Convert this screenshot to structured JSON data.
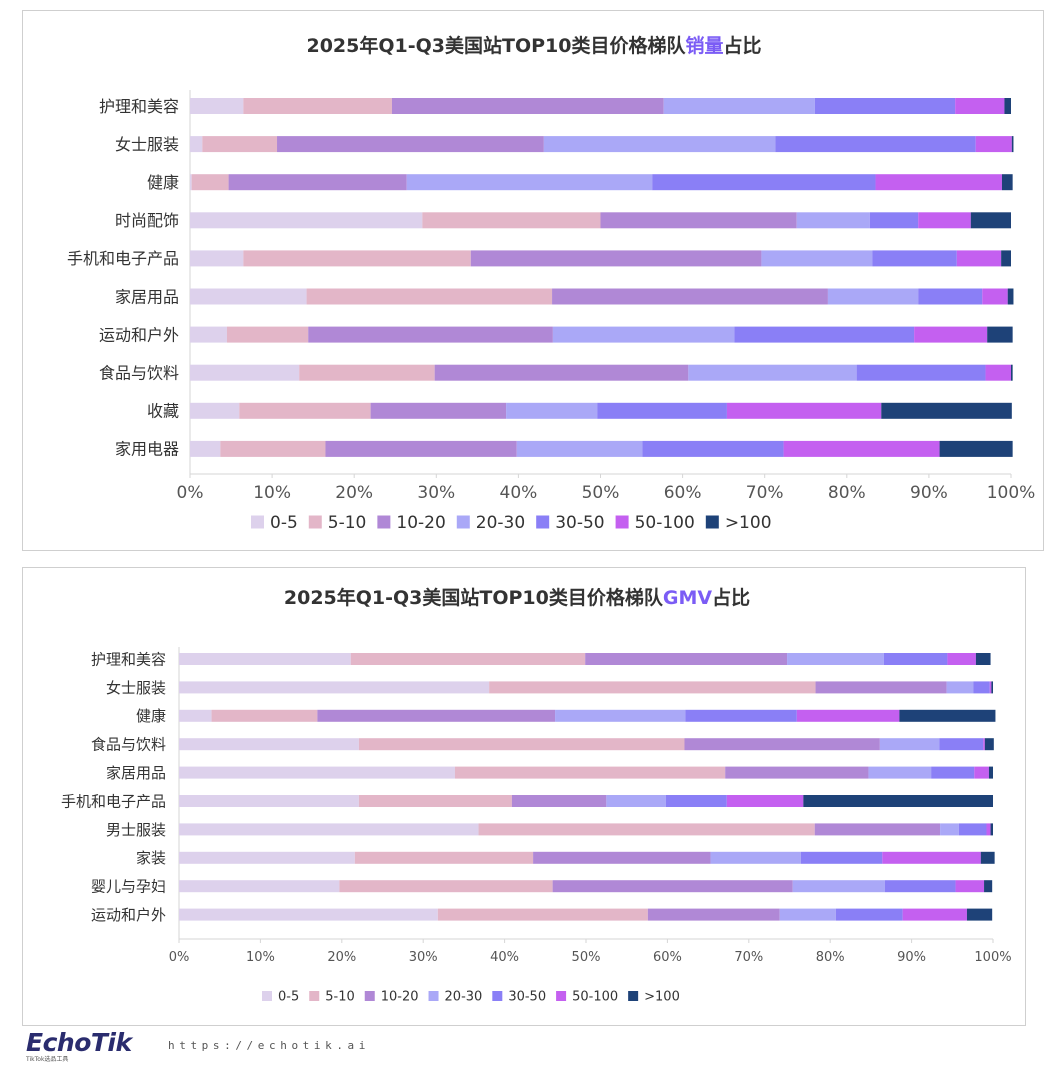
{
  "legend": [
    "0-5",
    "5-10",
    "10-20",
    "20-30",
    "30-50",
    "50-100",
    ">100"
  ],
  "colors": [
    "#ddd1ec",
    "#e3b6c8",
    "#b088d6",
    "#aaa8f7",
    "#8a7ff6",
    "#c460f0",
    "#1e4278"
  ],
  "accent_color": "#7b5cf5",
  "x_ticks": [
    "0%",
    "10%",
    "20%",
    "30%",
    "40%",
    "50%",
    "60%",
    "70%",
    "80%",
    "90%",
    "100%"
  ],
  "footer": {
    "logo": "EchoTik",
    "logo_sub": "TikTok选品工具",
    "url": "https://echotik.ai"
  },
  "chart_data": [
    {
      "type": "bar",
      "stacked": true,
      "orientation": "horizontal",
      "title_prefix": "2025年Q1-Q3美国站TOP10类目价格梯队",
      "title_highlight": "销量",
      "title_suffix": "占比",
      "xlim": [
        0,
        1
      ],
      "categories": [
        "护理和美容",
        "女士服装",
        "健康",
        "时尚配饰",
        "手机和电子产品",
        "家居用品",
        "运动和户外",
        "食品与饮料",
        "收藏",
        "家用电器"
      ],
      "series": [
        {
          "name": "0-5",
          "values": [
            0.065,
            0.015,
            0.002,
            0.283,
            0.065,
            0.142,
            0.045,
            0.133,
            0.06,
            0.037
          ]
        },
        {
          "name": "5-10",
          "values": [
            0.181,
            0.091,
            0.045,
            0.217,
            0.277,
            0.299,
            0.099,
            0.165,
            0.16,
            0.128
          ]
        },
        {
          "name": "10-20",
          "values": [
            0.331,
            0.325,
            0.217,
            0.239,
            0.354,
            0.336,
            0.298,
            0.309,
            0.165,
            0.233
          ]
        },
        {
          "name": "20-30",
          "values": [
            0.184,
            0.282,
            0.299,
            0.089,
            0.135,
            0.11,
            0.221,
            0.205,
            0.111,
            0.153
          ]
        },
        {
          "name": "30-50",
          "values": [
            0.171,
            0.244,
            0.272,
            0.059,
            0.103,
            0.078,
            0.219,
            0.157,
            0.158,
            0.172
          ]
        },
        {
          "name": "50-100",
          "values": [
            0.06,
            0.044,
            0.154,
            0.064,
            0.054,
            0.031,
            0.089,
            0.031,
            0.188,
            0.19
          ]
        },
        {
          "name": ">100",
          "values": [
            0.008,
            0.002,
            0.013,
            0.049,
            0.012,
            0.007,
            0.031,
            0.002,
            0.159,
            0.089
          ]
        }
      ]
    },
    {
      "type": "bar",
      "stacked": true,
      "orientation": "horizontal",
      "title_prefix": "2025年Q1-Q3美国站TOP10类目价格梯队",
      "title_highlight": "GMV",
      "title_suffix": "占比",
      "xlim": [
        0,
        1
      ],
      "categories": [
        "护理和美容",
        "女士服装",
        "健康",
        "食品与饮料",
        "家居用品",
        "手机和电子产品",
        "男士服装",
        "家装",
        "婴儿与孕妇",
        "运动和户外"
      ],
      "series": [
        {
          "name": "0-5",
          "values": [
            0.211,
            0.381,
            0.04,
            0.221,
            0.339,
            0.221,
            0.368,
            0.216,
            0.197,
            0.318
          ]
        },
        {
          "name": "5-10",
          "values": [
            0.288,
            0.401,
            0.13,
            0.4,
            0.332,
            0.188,
            0.413,
            0.219,
            0.262,
            0.258
          ]
        },
        {
          "name": "10-20",
          "values": [
            0.248,
            0.161,
            0.292,
            0.24,
            0.176,
            0.116,
            0.154,
            0.218,
            0.295,
            0.162
          ]
        },
        {
          "name": "20-30",
          "values": [
            0.119,
            0.033,
            0.16,
            0.073,
            0.077,
            0.073,
            0.023,
            0.111,
            0.113,
            0.069
          ]
        },
        {
          "name": "30-50",
          "values": [
            0.078,
            0.02,
            0.137,
            0.054,
            0.053,
            0.075,
            0.034,
            0.1,
            0.087,
            0.082
          ]
        },
        {
          "name": "50-100",
          "values": [
            0.035,
            0.002,
            0.126,
            0.002,
            0.018,
            0.094,
            0.005,
            0.121,
            0.035,
            0.079
          ]
        },
        {
          "name": ">100",
          "values": [
            0.018,
            0.002,
            0.118,
            0.011,
            0.005,
            0.233,
            0.003,
            0.017,
            0.01,
            0.031
          ]
        }
      ]
    }
  ]
}
